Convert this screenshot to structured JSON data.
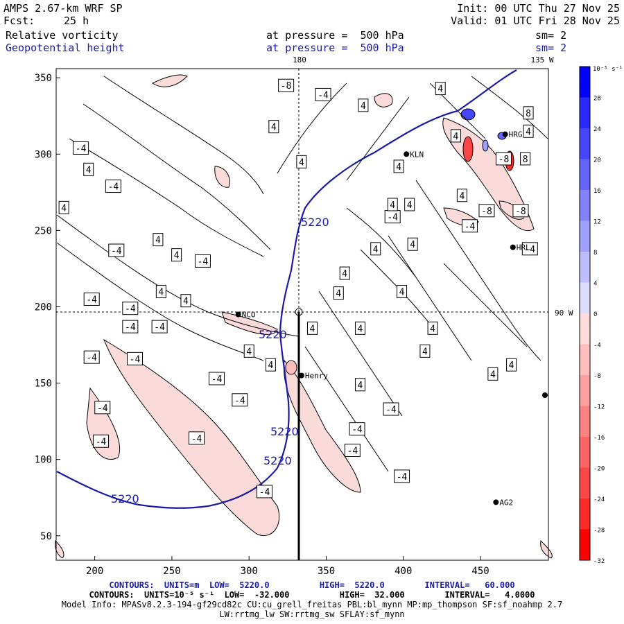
{
  "header": {
    "model": "AMPS 2.67-km WRF SP",
    "fcst_label": "Fcst:",
    "fcst_value": "25 h",
    "init": "Init: 00 UTC Thu 27 Nov 25",
    "valid": "Valid: 01 UTC Fri 28 Nov 25",
    "field1": "Relative vorticity",
    "field1_level": "at pressure =  500 hPa",
    "field1_sm": "sm= 2",
    "field2": "Geopotential height",
    "field2_level": "at pressure =  500 hPa",
    "field2_sm": "sm= 2"
  },
  "axes": {
    "x_ticks": [
      200,
      250,
      300,
      350,
      400,
      450
    ],
    "y_ticks": [
      50,
      100,
      150,
      200,
      250,
      300,
      350
    ],
    "xlim": [
      175,
      494
    ],
    "ylim": [
      34,
      356
    ],
    "meridian_labels": {
      "top_180": "180",
      "top_135w": "135 W",
      "right_90w": "90 W"
    }
  },
  "colorbar": {
    "unit_label": "10⁻⁵ s⁻¹",
    "ticks": [
      32,
      28,
      24,
      20,
      16,
      12,
      8,
      4,
      0,
      -4,
      -8,
      -12,
      -16,
      -20,
      -24,
      -28,
      -32
    ],
    "colors_positive": [
      "#0000ff",
      "#2a2aff",
      "#4646ff",
      "#6464ff",
      "#8282ff",
      "#a0a0ff",
      "#bdbdff",
      "#dcdcff"
    ],
    "colors_negative": [
      "#ffdcdc",
      "#ffbdbd",
      "#ffa0a0",
      "#ff8282",
      "#ff6464",
      "#ff4646",
      "#ff2a2a",
      "#ff0000"
    ]
  },
  "stations": [
    {
      "name": "NCO",
      "x": 293,
      "y": 195
    },
    {
      "name": "Henry",
      "x": 334,
      "y": 155
    },
    {
      "name": "KLN",
      "x": 402,
      "y": 300
    },
    {
      "name": "HRG",
      "x": 466,
      "y": 313
    },
    {
      "name": "HRL",
      "x": 471,
      "y": 239
    },
    {
      "name": "AG2",
      "x": 460,
      "y": 72
    }
  ],
  "height_contour": {
    "value_label": "5220"
  },
  "vorticity_labels": [
    {
      "t": "-4",
      "x": 191,
      "y": 304
    },
    {
      "t": "4",
      "x": 196,
      "y": 290
    },
    {
      "t": "-4",
      "x": 212,
      "y": 279
    },
    {
      "t": "4",
      "x": 180,
      "y": 265
    },
    {
      "t": "4",
      "x": 241,
      "y": 244
    },
    {
      "t": "-4",
      "x": 214,
      "y": 237
    },
    {
      "t": "4",
      "x": 253,
      "y": 234
    },
    {
      "t": "-4",
      "x": 270,
      "y": 230
    },
    {
      "t": "4",
      "x": 243,
      "y": 210
    },
    {
      "t": "-4",
      "x": 198,
      "y": 205
    },
    {
      "t": "-4",
      "x": 223,
      "y": 199
    },
    {
      "t": "4",
      "x": 259,
      "y": 204
    },
    {
      "t": "-4",
      "x": 223,
      "y": 187
    },
    {
      "t": "-4",
      "x": 242,
      "y": 187
    },
    {
      "t": "-4",
      "x": 198,
      "y": 167
    },
    {
      "t": "-4",
      "x": 226,
      "y": 166
    },
    {
      "t": "4",
      "x": 300,
      "y": 171
    },
    {
      "t": "-4",
      "x": 279,
      "y": 153
    },
    {
      "t": "4",
      "x": 341,
      "y": 186
    },
    {
      "t": "4",
      "x": 372,
      "y": 186
    },
    {
      "t": "4",
      "x": 314,
      "y": 162
    },
    {
      "t": "-4",
      "x": 294,
      "y": 139
    },
    {
      "t": "-4",
      "x": 205,
      "y": 134
    },
    {
      "t": "-4",
      "x": 266,
      "y": 114
    },
    {
      "t": "-4",
      "x": 204,
      "y": 112
    },
    {
      "t": "-4",
      "x": 310,
      "y": 79
    },
    {
      "t": "-4",
      "x": 370,
      "y": 120
    },
    {
      "t": "-4",
      "x": 367,
      "y": 106
    },
    {
      "t": "-4",
      "x": 392,
      "y": 133
    },
    {
      "t": "-4",
      "x": 399,
      "y": 89
    },
    {
      "t": "4",
      "x": 372,
      "y": 149
    },
    {
      "t": "4",
      "x": 414,
      "y": 171
    },
    {
      "t": "4",
      "x": 419,
      "y": 186
    },
    {
      "t": "4",
      "x": 470,
      "y": 162
    },
    {
      "t": "4",
      "x": 458,
      "y": 156
    },
    {
      "t": "4",
      "x": 358,
      "y": 209
    },
    {
      "t": "4",
      "x": 362,
      "y": 222
    },
    {
      "t": "4",
      "x": 399,
      "y": 210
    },
    {
      "t": "4",
      "x": 382,
      "y": 238
    },
    {
      "t": "4",
      "x": 406,
      "y": 241
    },
    {
      "t": "-4",
      "x": 393,
      "y": 259
    },
    {
      "t": "-4",
      "x": 443,
      "y": 253
    },
    {
      "t": "4",
      "x": 393,
      "y": 267
    },
    {
      "t": "4",
      "x": 404,
      "y": 267
    },
    {
      "t": "4",
      "x": 438,
      "y": 273
    },
    {
      "t": "4",
      "x": 397,
      "y": 292
    },
    {
      "t": "4",
      "x": 334,
      "y": 295
    },
    {
      "t": "4",
      "x": 316,
      "y": 318
    },
    {
      "t": "-4",
      "x": 348,
      "y": 339
    },
    {
      "t": "4",
      "x": 374,
      "y": 332
    },
    {
      "t": "4",
      "x": 424,
      "y": 343
    },
    {
      "t": "-8",
      "x": 324,
      "y": 345
    },
    {
      "t": "-8",
      "x": 454,
      "y": 263
    },
    {
      "t": "-8",
      "x": 476,
      "y": 263
    },
    {
      "t": "-8",
      "x": 465,
      "y": 297
    },
    {
      "t": "4",
      "x": 434,
      "y": 312
    },
    {
      "t": "-4",
      "x": 482,
      "y": 238
    },
    {
      "t": "8",
      "x": 481,
      "y": 327
    },
    {
      "t": "8",
      "x": 479,
      "y": 297
    },
    {
      "t": "4",
      "x": 481,
      "y": 315
    }
  ],
  "footer": {
    "line1": "CONTOURS:  UNITS=m  LOW=  5220.0          HIGH=  5220.0        INTERVAL=   60.000",
    "line2": "CONTOURS:  UNITS=10⁻⁵ s⁻¹  LOW=  -32.000          HIGH=  32.000        INTERVAL=   4.0000",
    "line3": "Model Info: MPASv8.2.3-194-gf29cd82c CU:cu_grell_freitas PBL:bl_mynn MP:mp_thompson SF:sf_noahmp 2.7",
    "line4": "LW:rrtmg_lw SW:rrtmg_sw SFLAY:sf_mynn"
  }
}
